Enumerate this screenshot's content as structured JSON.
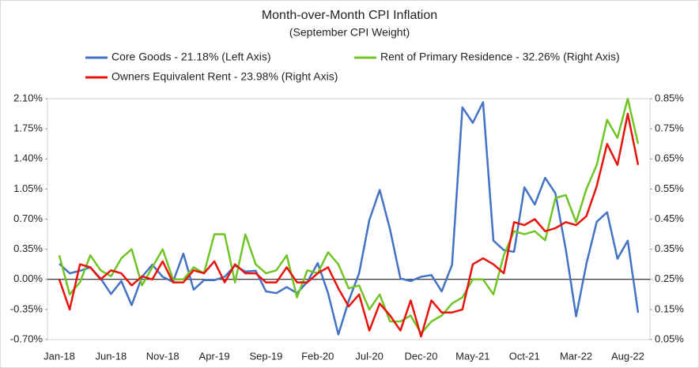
{
  "chart_data": {
    "type": "line",
    "title": "Month-over-Month CPI Inflation",
    "subtitle": "(September CPI Weight)",
    "categories": [
      "Jan-18",
      null,
      null,
      null,
      null,
      "Jun-18",
      null,
      null,
      null,
      null,
      "Nov-18",
      null,
      null,
      null,
      null,
      "Apr-19",
      null,
      null,
      null,
      null,
      "Sep-19",
      null,
      null,
      null,
      null,
      "Feb-20",
      null,
      null,
      null,
      null,
      "Jul-20",
      null,
      null,
      null,
      null,
      "Dec-20",
      null,
      null,
      null,
      null,
      "May-21",
      null,
      null,
      null,
      null,
      "Oct-21",
      null,
      null,
      null,
      null,
      "Mar-22",
      null,
      null,
      null,
      null,
      "Aug-22",
      null
    ],
    "series": [
      {
        "name": "Core Goods - 21.18% (Left Axis)",
        "color": "#4472c4",
        "axis": "y",
        "values": [
          0.18,
          0.07,
          0.1,
          0.14,
          0.01,
          -0.17,
          -0.02,
          -0.3,
          0.03,
          0.17,
          0.03,
          -0.03,
          0.3,
          -0.12,
          -0.01,
          -0.01,
          0.03,
          0.16,
          0.09,
          0.1,
          -0.14,
          -0.16,
          -0.09,
          -0.16,
          -0.03,
          0.19,
          -0.16,
          -0.64,
          -0.25,
          0.07,
          0.69,
          1.04,
          0.58,
          0.01,
          -0.02,
          0.03,
          0.05,
          -0.14,
          0.17,
          2.0,
          1.82,
          2.06,
          0.45,
          0.34,
          0.32,
          1.07,
          0.87,
          1.18,
          1.0,
          0.35,
          -0.43,
          0.18,
          0.67,
          0.78,
          0.24,
          0.45,
          -0.39
        ]
      },
      {
        "name": "Rent of Primary Residence - 32.26% (Right Axis)",
        "color": "#70c425",
        "axis": "y2",
        "values": [
          0.33,
          0.2,
          0.24,
          0.33,
          0.28,
          0.26,
          0.32,
          0.35,
          0.23,
          0.29,
          0.35,
          0.25,
          0.25,
          0.29,
          0.27,
          0.4,
          0.4,
          0.24,
          0.4,
          0.3,
          0.27,
          0.28,
          0.33,
          0.19,
          0.28,
          0.27,
          0.34,
          0.3,
          0.22,
          0.23,
          0.15,
          0.2,
          0.11,
          0.11,
          0.13,
          0.07,
          0.11,
          0.13,
          0.17,
          0.19,
          0.25,
          0.25,
          0.2,
          0.33,
          0.41,
          0.4,
          0.41,
          0.38,
          0.52,
          0.53,
          0.44,
          0.55,
          0.63,
          0.78,
          0.72,
          0.85,
          0.7
        ]
      },
      {
        "name": "Owners Equivalent Rent - 23.98% (Right Axis)",
        "color": "#e8130c",
        "axis": "y2",
        "values": [
          0.25,
          0.15,
          0.3,
          0.29,
          0.25,
          0.28,
          0.27,
          0.23,
          0.26,
          0.25,
          0.31,
          0.24,
          0.24,
          0.28,
          0.27,
          0.31,
          0.24,
          0.3,
          0.27,
          0.27,
          0.24,
          0.24,
          0.29,
          0.24,
          0.24,
          0.27,
          0.29,
          0.22,
          0.16,
          0.2,
          0.08,
          0.17,
          0.13,
          0.08,
          0.18,
          0.06,
          0.18,
          0.14,
          0.14,
          0.15,
          0.3,
          0.32,
          0.3,
          0.27,
          0.44,
          0.43,
          0.45,
          0.41,
          0.42,
          0.44,
          0.43,
          0.46,
          0.56,
          0.7,
          0.63,
          0.8,
          0.63
        ]
      }
    ],
    "ylim": [
      -0.7,
      2.1
    ],
    "yticks": [
      {
        "value": -0.7,
        "label": "-0.70%"
      },
      {
        "value": -0.35,
        "label": "-0.35%"
      },
      {
        "value": 0,
        "label": "0.00%"
      },
      {
        "value": 0.35,
        "label": "0.35%"
      },
      {
        "value": 0.7,
        "label": "0.70%"
      },
      {
        "value": 1.05,
        "label": "1.05%"
      },
      {
        "value": 1.4,
        "label": "1.40%"
      },
      {
        "value": 1.75,
        "label": "1.75%"
      },
      {
        "value": 2.1,
        "label": "2.10%"
      }
    ],
    "y2lim": [
      0.05,
      0.85
    ],
    "y2ticks": [
      {
        "value": 0.05,
        "label": "0.05%"
      },
      {
        "value": 0.15,
        "label": "0.15%"
      },
      {
        "value": 0.25,
        "label": "0.25%"
      },
      {
        "value": 0.35,
        "label": "0.35%"
      },
      {
        "value": 0.45,
        "label": "0.45%"
      },
      {
        "value": 0.55,
        "label": "0.55%"
      },
      {
        "value": 0.65,
        "label": "0.65%"
      },
      {
        "value": 0.75,
        "label": "0.75%"
      },
      {
        "value": 0.85,
        "label": "0.85%"
      }
    ],
    "grid": false
  }
}
